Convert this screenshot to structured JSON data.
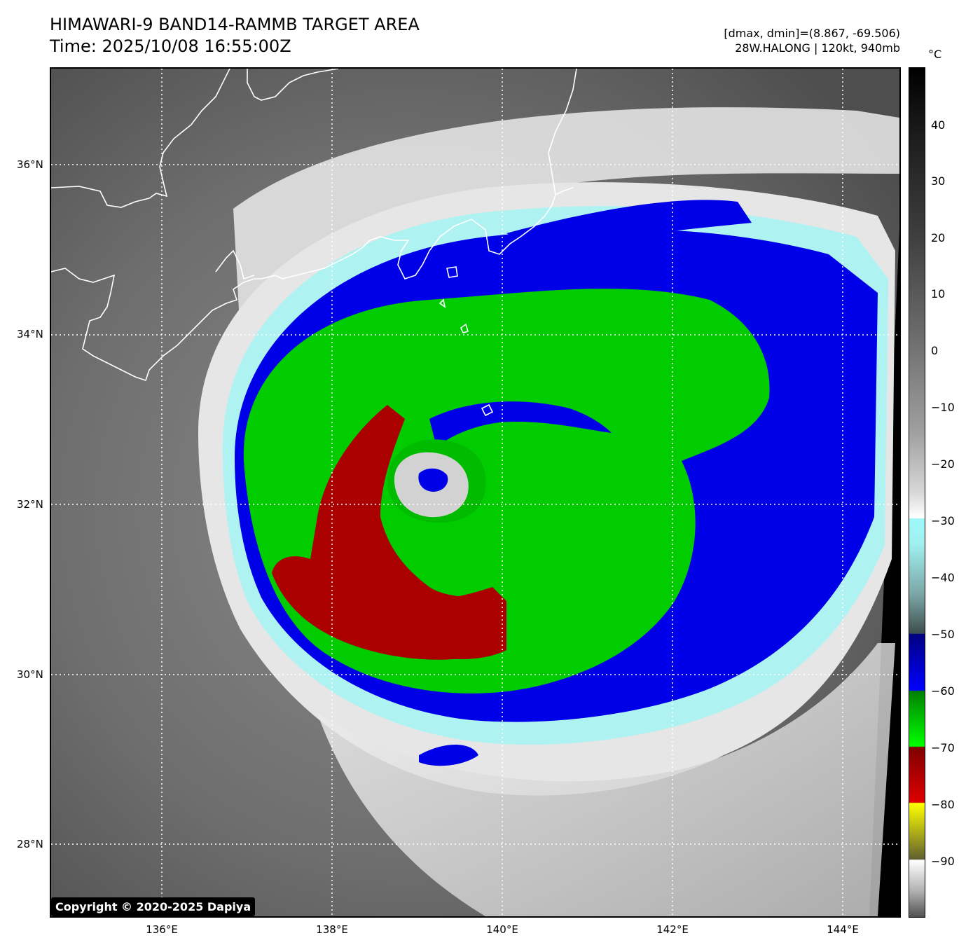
{
  "header": {
    "title_line1": "HIMAWARI-9 BAND14-RAMMB TARGET AREA",
    "title_line2": "Time: 2025/10/08 16:55:00Z",
    "range_text": "[dmax, dmin]=(8.867, -69.506)",
    "storm_text": "28W.HALONG | 120kt, 940mb"
  },
  "map": {
    "lon_ticks": [
      "136°E",
      "138°E",
      "140°E",
      "142°E",
      "144°E"
    ],
    "lat_ticks": [
      "36°N",
      "34°N",
      "32°N",
      "30°N",
      "28°N"
    ],
    "colors": {
      "background_gray": "#6b6b6b",
      "cloud_white": "#e8e8e8",
      "cyan_edge": "#a8f4f4",
      "blue": "#0000e6",
      "green": "#00c800",
      "red": "#a80000",
      "eye_gray": "#cfcfcf",
      "coastline": "#ffffff",
      "gridline": "#ffffff"
    }
  },
  "colorbar": {
    "unit": "°C",
    "labels": [
      "40",
      "30",
      "20",
      "10",
      "0",
      "−10",
      "−20",
      "−30",
      "−40",
      "−50",
      "−60",
      "−70",
      "−80",
      "−90"
    ]
  },
  "copyright": "Copyright © 2020-2025 Dapiya"
}
